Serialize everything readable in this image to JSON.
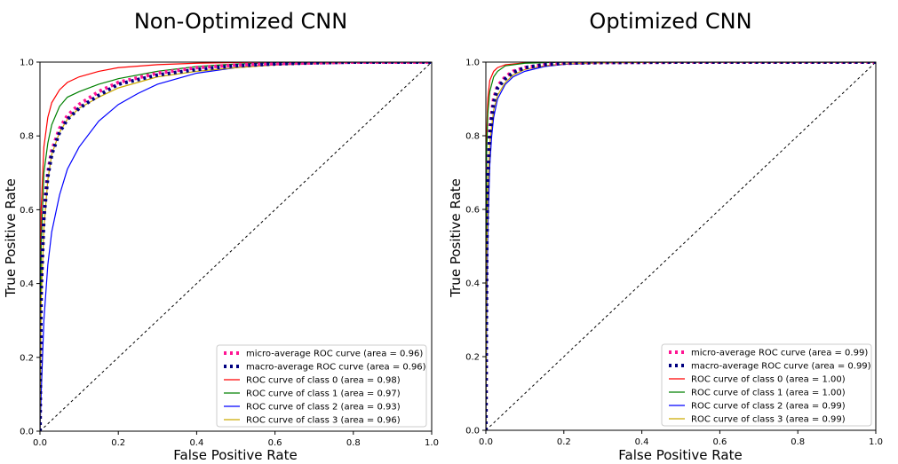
{
  "chart_data": [
    {
      "type": "line",
      "title": "Non-Optimized CNN",
      "xlabel": "False Positive Rate",
      "ylabel": "True Positive Rate",
      "xlim": [
        0,
        1
      ],
      "ylim": [
        0,
        1
      ],
      "xticks": [
        "0.0",
        "0.2",
        "0.4",
        "0.6",
        "0.8",
        "1.0"
      ],
      "yticks": [
        "0.0",
        "0.2",
        "0.4",
        "0.6",
        "0.8",
        "1.0"
      ],
      "grid": false,
      "legend_position": "lower-right",
      "series": [
        {
          "name": "micro-average ROC curve (area = 0.96)",
          "color": "#ff1493",
          "style": "dotted",
          "x": [
            0,
            0.003,
            0.01,
            0.02,
            0.03,
            0.05,
            0.07,
            0.1,
            0.15,
            0.2,
            0.3,
            0.4,
            0.5,
            0.6,
            0.7,
            0.8,
            1.0
          ],
          "y": [
            0,
            0.4,
            0.6,
            0.7,
            0.76,
            0.82,
            0.855,
            0.885,
            0.92,
            0.945,
            0.97,
            0.985,
            0.992,
            0.996,
            0.998,
            1.0,
            1.0
          ]
        },
        {
          "name": "macro-average ROC curve (area = 0.96)",
          "color": "#000080",
          "style": "dotted",
          "x": [
            0,
            0.003,
            0.01,
            0.02,
            0.03,
            0.05,
            0.07,
            0.1,
            0.15,
            0.2,
            0.3,
            0.4,
            0.5,
            0.6,
            0.7,
            0.8,
            1.0
          ],
          "y": [
            0,
            0.38,
            0.58,
            0.69,
            0.75,
            0.81,
            0.845,
            0.875,
            0.91,
            0.94,
            0.965,
            0.98,
            0.99,
            0.995,
            0.998,
            1.0,
            1.0
          ]
        },
        {
          "name": "ROC curve of class 0 (area = 0.98)",
          "color": "#ff0000",
          "style": "solid",
          "x": [
            0,
            0.003,
            0.01,
            0.02,
            0.03,
            0.05,
            0.07,
            0.1,
            0.15,
            0.2,
            0.3,
            0.4,
            0.5,
            0.6,
            0.8,
            1.0
          ],
          "y": [
            0,
            0.6,
            0.77,
            0.85,
            0.89,
            0.925,
            0.945,
            0.96,
            0.975,
            0.985,
            0.993,
            0.997,
            0.999,
            1.0,
            1.0,
            1.0
          ]
        },
        {
          "name": "ROC curve of class 1 (area = 0.97)",
          "color": "#008000",
          "style": "solid",
          "x": [
            0,
            0.003,
            0.01,
            0.02,
            0.03,
            0.05,
            0.07,
            0.1,
            0.15,
            0.2,
            0.3,
            0.4,
            0.5,
            0.6,
            0.8,
            1.0
          ],
          "y": [
            0,
            0.5,
            0.7,
            0.78,
            0.83,
            0.88,
            0.905,
            0.92,
            0.94,
            0.955,
            0.975,
            0.988,
            0.995,
            0.998,
            1.0,
            1.0
          ]
        },
        {
          "name": "ROC curve of class 2 (area = 0.93)",
          "color": "#0000ff",
          "style": "solid",
          "x": [
            0,
            0.003,
            0.01,
            0.02,
            0.03,
            0.05,
            0.07,
            0.1,
            0.15,
            0.2,
            0.25,
            0.3,
            0.4,
            0.5,
            0.6,
            0.7,
            0.8,
            1.0
          ],
          "y": [
            0,
            0.1,
            0.3,
            0.45,
            0.54,
            0.64,
            0.71,
            0.77,
            0.84,
            0.885,
            0.915,
            0.94,
            0.97,
            0.985,
            0.993,
            0.997,
            1.0,
            1.0
          ]
        },
        {
          "name": "ROC curve of class 3 (area = 0.96)",
          "color": "#ccaa00",
          "style": "solid",
          "x": [
            0,
            0.003,
            0.01,
            0.02,
            0.03,
            0.05,
            0.07,
            0.1,
            0.15,
            0.2,
            0.3,
            0.4,
            0.5,
            0.6,
            0.7,
            0.8,
            1.0
          ],
          "y": [
            0,
            0.35,
            0.55,
            0.68,
            0.75,
            0.81,
            0.845,
            0.875,
            0.905,
            0.93,
            0.96,
            0.975,
            0.985,
            0.992,
            0.996,
            1.0,
            1.0
          ]
        }
      ],
      "chance_line": {
        "x": [
          0,
          1
        ],
        "y": [
          0,
          1
        ],
        "color": "#000000",
        "style": "dashed"
      }
    },
    {
      "type": "line",
      "title": "Optimized CNN",
      "xlabel": "False Positive Rate",
      "ylabel": "True Positive Rate",
      "xlim": [
        0,
        1
      ],
      "ylim": [
        0,
        1
      ],
      "xticks": [
        "0.0",
        "0.2",
        "0.4",
        "0.6",
        "0.8",
        "1.0"
      ],
      "yticks": [
        "0.0",
        "0.2",
        "0.4",
        "0.6",
        "0.8",
        "1.0"
      ],
      "grid": false,
      "legend_position": "lower-right",
      "series": [
        {
          "name": "micro-average ROC curve (area = 0.99)",
          "color": "#ff1493",
          "style": "dotted",
          "x": [
            0,
            0.002,
            0.005,
            0.01,
            0.02,
            0.03,
            0.05,
            0.07,
            0.1,
            0.15,
            0.2,
            0.3,
            0.5,
            1.0
          ],
          "y": [
            0,
            0.5,
            0.7,
            0.82,
            0.9,
            0.935,
            0.96,
            0.975,
            0.985,
            0.993,
            0.997,
            0.999,
            1.0,
            1.0
          ]
        },
        {
          "name": "macro-average ROC curve (area = 0.99)",
          "color": "#000080",
          "style": "dotted",
          "x": [
            0,
            0.002,
            0.005,
            0.01,
            0.02,
            0.03,
            0.05,
            0.07,
            0.1,
            0.15,
            0.2,
            0.3,
            0.5,
            1.0
          ],
          "y": [
            0,
            0.48,
            0.68,
            0.8,
            0.89,
            0.93,
            0.955,
            0.972,
            0.985,
            0.993,
            0.997,
            0.999,
            1.0,
            1.0
          ]
        },
        {
          "name": "ROC curve of class 0 (area = 1.00)",
          "color": "#ff0000",
          "style": "solid",
          "x": [
            0,
            0.002,
            0.005,
            0.01,
            0.02,
            0.03,
            0.05,
            0.1,
            0.2,
            1.0
          ],
          "y": [
            0,
            0.8,
            0.9,
            0.95,
            0.975,
            0.985,
            0.993,
            0.998,
            1.0,
            1.0
          ]
        },
        {
          "name": "ROC curve of class 1 (area = 1.00)",
          "color": "#008000",
          "style": "solid",
          "x": [
            0,
            0.002,
            0.005,
            0.01,
            0.02,
            0.03,
            0.05,
            0.1,
            0.2,
            1.0
          ],
          "y": [
            0,
            0.75,
            0.86,
            0.92,
            0.96,
            0.975,
            0.99,
            0.997,
            1.0,
            1.0
          ]
        },
        {
          "name": "ROC curve of class 2 (area = 0.99)",
          "color": "#0000ff",
          "style": "solid",
          "x": [
            0,
            0.002,
            0.005,
            0.01,
            0.015,
            0.02,
            0.03,
            0.05,
            0.07,
            0.1,
            0.15,
            0.2,
            0.3,
            0.5,
            1.0
          ],
          "y": [
            0,
            0.3,
            0.55,
            0.72,
            0.8,
            0.85,
            0.9,
            0.94,
            0.96,
            0.975,
            0.988,
            0.994,
            0.998,
            1.0,
            1.0
          ]
        },
        {
          "name": "ROC curve of class 3 (area = 0.99)",
          "color": "#ccaa00",
          "style": "solid",
          "x": [
            0,
            0.002,
            0.005,
            0.01,
            0.02,
            0.03,
            0.05,
            0.07,
            0.1,
            0.15,
            0.2,
            0.3,
            0.5,
            1.0
          ],
          "y": [
            0,
            0.45,
            0.65,
            0.78,
            0.87,
            0.91,
            0.945,
            0.965,
            0.98,
            0.99,
            0.995,
            0.998,
            1.0,
            1.0
          ]
        }
      ],
      "chance_line": {
        "x": [
          0,
          1
        ],
        "y": [
          0,
          1
        ],
        "color": "#000000",
        "style": "dashed"
      }
    }
  ]
}
